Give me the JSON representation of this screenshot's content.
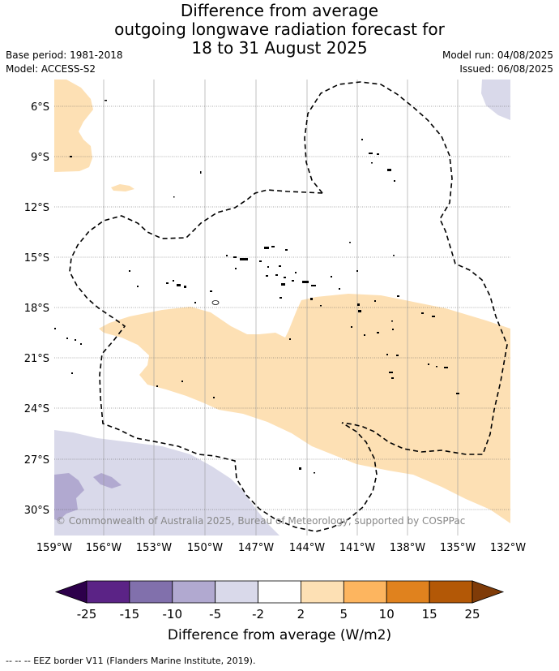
{
  "title_lines": [
    "Difference from average",
    "outgoing longwave radiation forecast for",
    "18 to 31 August 2025"
  ],
  "meta_left": {
    "base_period": "Base period: 1981-2018",
    "model": "Model: ACCESS-S2"
  },
  "meta_right": {
    "model_run": "Model run: 04/08/2025",
    "issued": "Issued: 06/08/2025"
  },
  "lat_labels": [
    "6°S",
    "9°S",
    "12°S",
    "15°S",
    "18°S",
    "21°S",
    "24°S",
    "27°S",
    "30°S"
  ],
  "lon_labels": [
    "159°W",
    "156°W",
    "153°W",
    "150°W",
    "147°W",
    "144°W",
    "141°W",
    "138°W",
    "135°W",
    "132°W"
  ],
  "copyright": "© Commonwealth of Australia 2025, Bureau of Meteorology, supported by COSPPac",
  "colorbar": {
    "ticks": [
      "-25",
      "-15",
      "-10",
      "-5",
      "-2",
      "2",
      "5",
      "10",
      "15",
      "25"
    ],
    "colors": [
      "#5b2386",
      "#8170ac",
      "#b1a9d0",
      "#d9d9ea",
      "#ffffff",
      "#fde0b4",
      "#fdb55f",
      "#e0821e",
      "#b35806"
    ],
    "under_color": "#2d004b",
    "over_color": "#7f3b08",
    "label": "Difference from average (W/m2)"
  },
  "palette": {
    "light_orange": "#fde0b4",
    "light_purple": "#d9d9ea",
    "mid_purple": "#b1a9d0"
  },
  "footer": "--  --  -- EEZ border V11 (Flanders Marine Institute, 2019)."
}
